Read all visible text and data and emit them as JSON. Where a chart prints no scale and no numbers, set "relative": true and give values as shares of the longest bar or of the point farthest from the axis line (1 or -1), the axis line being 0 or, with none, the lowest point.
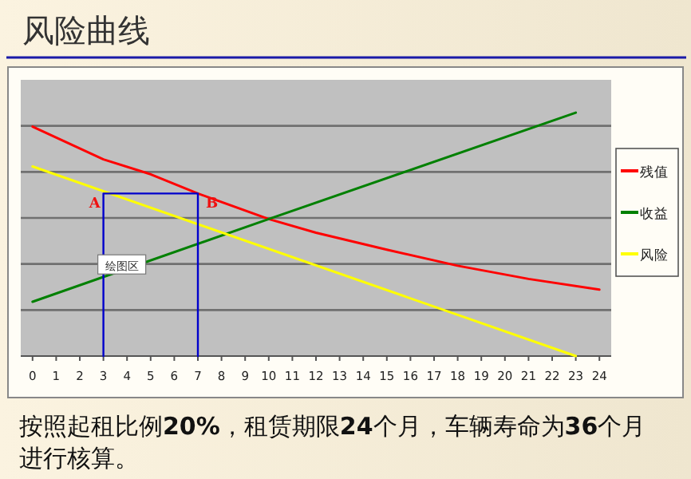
{
  "chart_data": {
    "type": "line",
    "title": "风险曲线",
    "relative": true,
    "grid": "y",
    "legend": "right",
    "marker": "none",
    "line_style": "solid",
    "xlim": [
      -0.5,
      24.5
    ],
    "xticks": [
      0,
      1,
      2,
      3,
      4,
      5,
      6,
      7,
      8,
      9,
      10,
      11,
      12,
      13,
      14,
      15,
      16,
      17,
      18,
      19,
      20,
      21,
      22,
      23,
      24
    ],
    "series": [
      {
        "name": "残值",
        "color": "#ff0000",
        "x": [
          0,
          3,
          5,
          7,
          10,
          12,
          15,
          18,
          21,
          24
        ],
        "values": [
          0.943,
          0.808,
          0.747,
          0.668,
          0.563,
          0.507,
          0.437,
          0.371,
          0.317,
          0.273
        ]
      },
      {
        "name": "收益",
        "color": "#008000",
        "x": [
          0,
          10,
          23
        ],
        "values": [
          0.223,
          0.563,
          1
        ]
      },
      {
        "name": "风险",
        "color": "#ffff00",
        "x": [
          0,
          23
        ],
        "values": [
          0.779,
          0
        ]
      },
      {
        "color": "#0000cc",
        "x": [
          3,
          3,
          7,
          7
        ],
        "values": [
          0,
          0.668,
          0.668,
          0
        ]
      }
    ],
    "annotations": [
      {
        "text": "A",
        "x": 3,
        "y": 0.668
      },
      {
        "text": "B",
        "x": 7,
        "y": 0.668
      },
      "绘图区",
      "按照起租比例**20%**，租赁期限**24**个月，车辆寿命为**36**个月进行核算。"
    ]
  }
}
